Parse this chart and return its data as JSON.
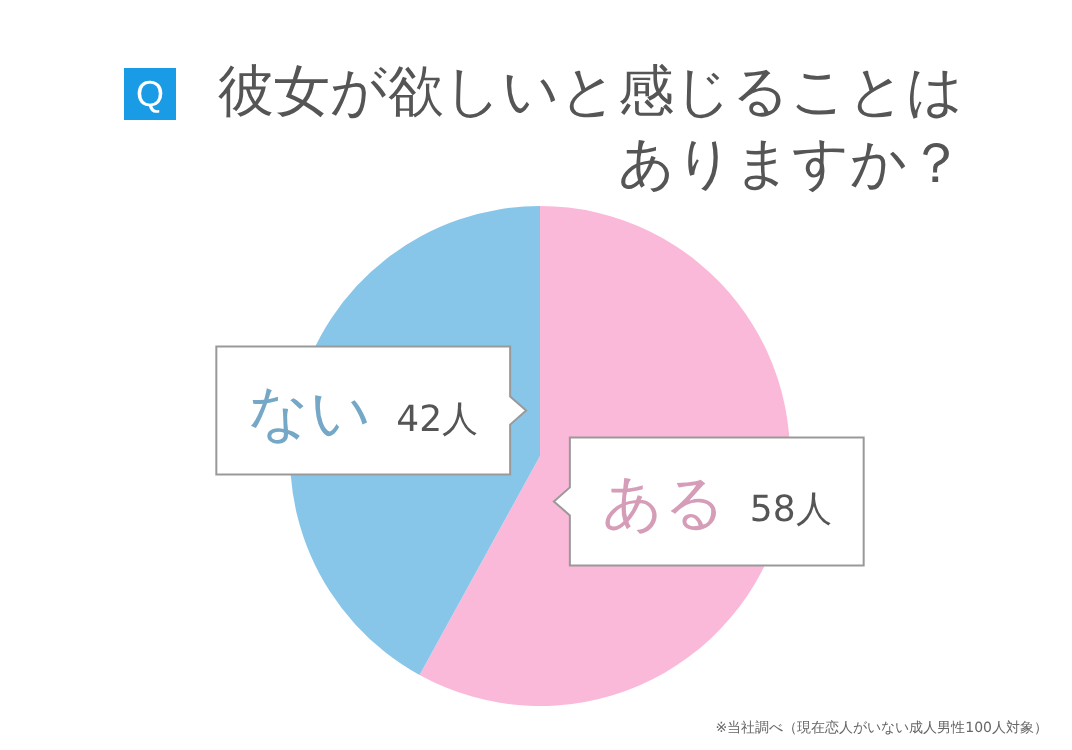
{
  "chart_data": {
    "type": "pie",
    "title": "彼女が欲しいと感じることはありますか？",
    "categories": [
      "ある",
      "ない"
    ],
    "values": [
      58,
      42
    ],
    "colors": [
      "#fbb9d9",
      "#88c6e9"
    ],
    "value_labels": [
      "58人",
      "42人"
    ],
    "annotations": [
      "Q",
      "※当社調べ（現在恋人がいない成人男性100人対象）"
    ]
  }
}
